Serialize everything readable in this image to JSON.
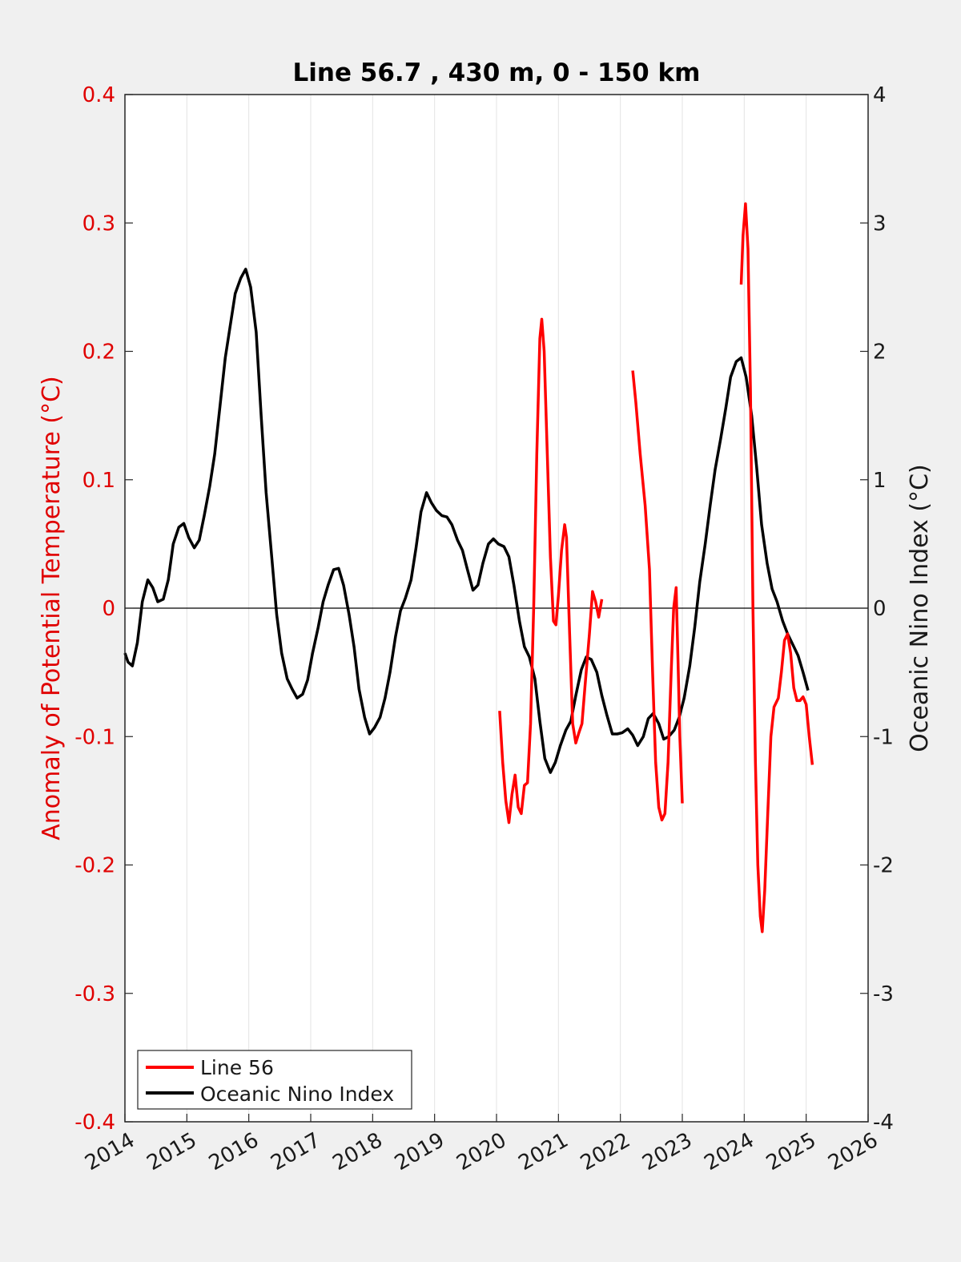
{
  "chart_data": {
    "type": "line",
    "title": "Line 56.7 , 430 m, 0 - 150 km",
    "xlabel": "",
    "ylabel_left": "Anomaly of Potential Temperature (°C)",
    "ylabel_right": "Oceanic Nino Index (°C)",
    "xlim": [
      2014,
      2026
    ],
    "ylim_left": [
      -0.4,
      0.4
    ],
    "ylim_right": [
      -4,
      4
    ],
    "x_ticks": [
      "2014",
      "2015",
      "2016",
      "2017",
      "2018",
      "2019",
      "2020",
      "2021",
      "2022",
      "2023",
      "2024",
      "2025",
      "2026"
    ],
    "y_left_ticks": [
      "-0.4",
      "-0.3",
      "-0.2",
      "-0.1",
      "0",
      "0.1",
      "0.2",
      "0.3",
      "0.4"
    ],
    "y_right_ticks": [
      "-4",
      "-3",
      "-2",
      "-1",
      "0",
      "1",
      "2",
      "3",
      "4"
    ],
    "grid": "vertical",
    "zero_line": true,
    "legend_position": "bottom-left",
    "colors": {
      "line56": "#ff0000",
      "oni": "#000000",
      "left_axis": "#e00000"
    },
    "series": [
      {
        "name": "Line 56",
        "axis": "left",
        "segments": [
          [
            [
              2020.05,
              -0.08
            ],
            [
              2020.1,
              -0.12
            ],
            [
              2020.15,
              -0.15
            ],
            [
              2020.2,
              -0.167
            ],
            [
              2020.25,
              -0.145
            ],
            [
              2020.3,
              -0.13
            ],
            [
              2020.35,
              -0.155
            ],
            [
              2020.4,
              -0.16
            ],
            [
              2020.45,
              -0.138
            ],
            [
              2020.5,
              -0.136
            ],
            [
              2020.55,
              -0.09
            ],
            [
              2020.6,
              0.0
            ],
            [
              2020.65,
              0.12
            ],
            [
              2020.7,
              0.21
            ],
            [
              2020.73,
              0.225
            ],
            [
              2020.77,
              0.2
            ],
            [
              2020.82,
              0.12
            ],
            [
              2020.87,
              0.04
            ],
            [
              2020.92,
              -0.01
            ],
            [
              2020.96,
              -0.013
            ],
            [
              2021.0,
              0.01
            ],
            [
              2021.05,
              0.045
            ],
            [
              2021.1,
              0.065
            ],
            [
              2021.13,
              0.055
            ],
            [
              2021.18,
              -0.02
            ],
            [
              2021.23,
              -0.09
            ],
            [
              2021.28,
              -0.105
            ],
            [
              2021.33,
              -0.097
            ],
            [
              2021.38,
              -0.09
            ],
            [
              2021.43,
              -0.06
            ],
            [
              2021.5,
              -0.02
            ],
            [
              2021.55,
              0.013
            ],
            [
              2021.6,
              0.005
            ],
            [
              2021.65,
              -0.007
            ],
            [
              2021.7,
              0.007
            ]
          ],
          [
            [
              2022.2,
              0.185
            ],
            [
              2022.25,
              0.16
            ],
            [
              2022.32,
              0.12
            ],
            [
              2022.4,
              0.08
            ],
            [
              2022.47,
              0.03
            ],
            [
              2022.52,
              -0.05
            ],
            [
              2022.57,
              -0.12
            ],
            [
              2022.62,
              -0.155
            ],
            [
              2022.67,
              -0.165
            ],
            [
              2022.72,
              -0.16
            ],
            [
              2022.77,
              -0.12
            ],
            [
              2022.82,
              -0.05
            ],
            [
              2022.86,
              0.0
            ],
            [
              2022.9,
              0.016
            ],
            [
              2022.93,
              -0.04
            ],
            [
              2022.96,
              -0.1
            ],
            [
              2023.0,
              -0.152
            ]
          ],
          [
            [
              2023.95,
              0.252
            ],
            [
              2023.98,
              0.29
            ],
            [
              2024.02,
              0.315
            ],
            [
              2024.06,
              0.28
            ],
            [
              2024.1,
              0.17
            ],
            [
              2024.14,
              0.0
            ],
            [
              2024.18,
              -0.12
            ],
            [
              2024.22,
              -0.2
            ],
            [
              2024.26,
              -0.24
            ],
            [
              2024.29,
              -0.252
            ],
            [
              2024.33,
              -0.22
            ],
            [
              2024.38,
              -0.16
            ],
            [
              2024.43,
              -0.1
            ],
            [
              2024.48,
              -0.077
            ],
            [
              2024.55,
              -0.07
            ],
            [
              2024.6,
              -0.05
            ],
            [
              2024.65,
              -0.025
            ],
            [
              2024.7,
              -0.02
            ],
            [
              2024.75,
              -0.035
            ],
            [
              2024.8,
              -0.062
            ],
            [
              2024.85,
              -0.072
            ],
            [
              2024.9,
              -0.072
            ],
            [
              2024.95,
              -0.069
            ],
            [
              2025.0,
              -0.075
            ],
            [
              2025.05,
              -0.1
            ],
            [
              2025.1,
              -0.122
            ]
          ]
        ]
      },
      {
        "name": "Oceanic Nino Index",
        "axis": "right",
        "points": [
          [
            2014.0,
            -0.35
          ],
          [
            2014.05,
            -0.42
          ],
          [
            2014.12,
            -0.45
          ],
          [
            2014.2,
            -0.27
          ],
          [
            2014.28,
            0.05
          ],
          [
            2014.37,
            0.22
          ],
          [
            2014.45,
            0.16
          ],
          [
            2014.53,
            0.05
          ],
          [
            2014.62,
            0.07
          ],
          [
            2014.7,
            0.22
          ],
          [
            2014.78,
            0.5
          ],
          [
            2014.87,
            0.63
          ],
          [
            2014.95,
            0.66
          ],
          [
            2015.03,
            0.55
          ],
          [
            2015.12,
            0.47
          ],
          [
            2015.2,
            0.53
          ],
          [
            2015.28,
            0.72
          ],
          [
            2015.37,
            0.95
          ],
          [
            2015.45,
            1.2
          ],
          [
            2015.53,
            1.55
          ],
          [
            2015.62,
            1.95
          ],
          [
            2015.7,
            2.2
          ],
          [
            2015.78,
            2.45
          ],
          [
            2015.87,
            2.57
          ],
          [
            2015.95,
            2.64
          ],
          [
            2016.03,
            2.5
          ],
          [
            2016.12,
            2.15
          ],
          [
            2016.2,
            1.5
          ],
          [
            2016.28,
            0.9
          ],
          [
            2016.37,
            0.4
          ],
          [
            2016.45,
            -0.05
          ],
          [
            2016.53,
            -0.35
          ],
          [
            2016.62,
            -0.55
          ],
          [
            2016.7,
            -0.63
          ],
          [
            2016.78,
            -0.7
          ],
          [
            2016.87,
            -0.67
          ],
          [
            2016.95,
            -0.56
          ],
          [
            2017.03,
            -0.35
          ],
          [
            2017.12,
            -0.15
          ],
          [
            2017.2,
            0.05
          ],
          [
            2017.28,
            0.18
          ],
          [
            2017.37,
            0.3
          ],
          [
            2017.45,
            0.31
          ],
          [
            2017.53,
            0.18
          ],
          [
            2017.62,
            -0.05
          ],
          [
            2017.7,
            -0.3
          ],
          [
            2017.78,
            -0.63
          ],
          [
            2017.87,
            -0.85
          ],
          [
            2017.95,
            -0.98
          ],
          [
            2018.03,
            -0.93
          ],
          [
            2018.12,
            -0.85
          ],
          [
            2018.2,
            -0.7
          ],
          [
            2018.28,
            -0.5
          ],
          [
            2018.37,
            -0.22
          ],
          [
            2018.45,
            -0.02
          ],
          [
            2018.53,
            0.08
          ],
          [
            2018.62,
            0.22
          ],
          [
            2018.7,
            0.47
          ],
          [
            2018.78,
            0.75
          ],
          [
            2018.87,
            0.9
          ],
          [
            2018.95,
            0.82
          ],
          [
            2019.03,
            0.76
          ],
          [
            2019.12,
            0.72
          ],
          [
            2019.2,
            0.71
          ],
          [
            2019.28,
            0.65
          ],
          [
            2019.37,
            0.53
          ],
          [
            2019.45,
            0.45
          ],
          [
            2019.53,
            0.3
          ],
          [
            2019.62,
            0.14
          ],
          [
            2019.7,
            0.18
          ],
          [
            2019.78,
            0.35
          ],
          [
            2019.87,
            0.5
          ],
          [
            2019.95,
            0.54
          ],
          [
            2020.03,
            0.5
          ],
          [
            2020.12,
            0.48
          ],
          [
            2020.2,
            0.4
          ],
          [
            2020.28,
            0.18
          ],
          [
            2020.37,
            -0.1
          ],
          [
            2020.45,
            -0.3
          ],
          [
            2020.53,
            -0.38
          ],
          [
            2020.62,
            -0.55
          ],
          [
            2020.7,
            -0.88
          ],
          [
            2020.78,
            -1.17
          ],
          [
            2020.87,
            -1.28
          ],
          [
            2020.95,
            -1.2
          ],
          [
            2021.03,
            -1.07
          ],
          [
            2021.12,
            -0.95
          ],
          [
            2021.2,
            -0.88
          ],
          [
            2021.28,
            -0.68
          ],
          [
            2021.37,
            -0.48
          ],
          [
            2021.45,
            -0.38
          ],
          [
            2021.53,
            -0.4
          ],
          [
            2021.62,
            -0.5
          ],
          [
            2021.7,
            -0.68
          ],
          [
            2021.78,
            -0.83
          ],
          [
            2021.87,
            -0.98
          ],
          [
            2021.95,
            -0.98
          ],
          [
            2022.03,
            -0.97
          ],
          [
            2022.12,
            -0.94
          ],
          [
            2022.2,
            -0.99
          ],
          [
            2022.28,
            -1.07
          ],
          [
            2022.37,
            -1.0
          ],
          [
            2022.45,
            -0.86
          ],
          [
            2022.53,
            -0.82
          ],
          [
            2022.62,
            -0.9
          ],
          [
            2022.7,
            -1.02
          ],
          [
            2022.78,
            -1.0
          ],
          [
            2022.87,
            -0.95
          ],
          [
            2022.95,
            -0.85
          ],
          [
            2023.03,
            -0.7
          ],
          [
            2023.12,
            -0.45
          ],
          [
            2023.2,
            -0.15
          ],
          [
            2023.28,
            0.2
          ],
          [
            2023.37,
            0.5
          ],
          [
            2023.45,
            0.8
          ],
          [
            2023.53,
            1.08
          ],
          [
            2023.62,
            1.32
          ],
          [
            2023.7,
            1.55
          ],
          [
            2023.78,
            1.8
          ],
          [
            2023.87,
            1.92
          ],
          [
            2023.95,
            1.95
          ],
          [
            2024.03,
            1.8
          ],
          [
            2024.12,
            1.5
          ],
          [
            2024.2,
            1.1
          ],
          [
            2024.28,
            0.65
          ],
          [
            2024.37,
            0.35
          ],
          [
            2024.45,
            0.15
          ],
          [
            2024.53,
            0.05
          ],
          [
            2024.62,
            -0.1
          ],
          [
            2024.7,
            -0.2
          ],
          [
            2024.78,
            -0.28
          ],
          [
            2024.87,
            -0.37
          ],
          [
            2024.95,
            -0.5
          ],
          [
            2025.03,
            -0.64
          ]
        ]
      }
    ]
  }
}
